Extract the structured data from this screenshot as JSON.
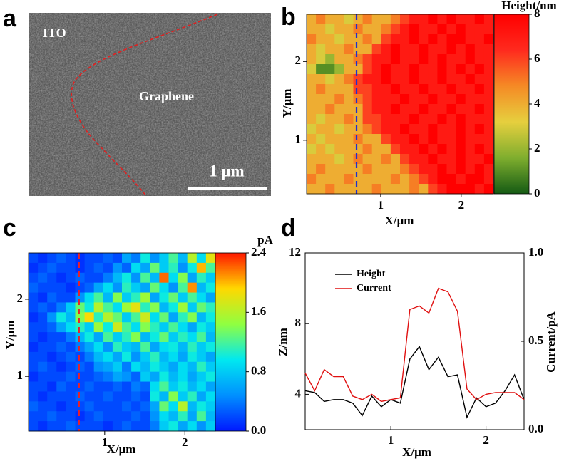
{
  "image_panel": {
    "letter": "a",
    "labels": [
      "ITO",
      "Graphene"
    ],
    "scale_bar": "1 μm"
  },
  "chart_data": [
    {
      "type": "heatmap",
      "panel": "b",
      "xlabel": "X/μm",
      "ylabel": "Y/μm",
      "xlim": [
        0.08,
        2.4
      ],
      "ylim": [
        0.32,
        2.6
      ],
      "xticks": [
        1,
        2
      ],
      "yticks": [
        1,
        2
      ],
      "marker_x": 0.7,
      "marker_color": "#1f2fd0",
      "colorbar": {
        "label": "Height/nm",
        "lim": [
          0,
          8
        ],
        "ticks": [
          0,
          2,
          4,
          6,
          8
        ],
        "colormap": [
          "#145a14",
          "#7fae2e",
          "#e6cf3e",
          "#f58a25",
          "#ff2a1e",
          "#ff0000"
        ]
      },
      "z": [
        [
          4,
          5,
          4,
          4,
          3,
          4,
          5,
          4,
          4,
          5,
          6,
          7,
          7,
          8,
          7,
          8,
          7,
          7,
          8,
          7
        ],
        [
          4,
          4,
          3,
          4,
          4,
          5,
          4,
          4,
          5,
          6,
          7,
          8,
          7,
          7,
          8,
          7,
          8,
          7,
          7,
          7
        ],
        [
          5,
          4,
          4,
          3,
          4,
          4,
          5,
          4,
          6,
          7,
          7,
          8,
          7,
          8,
          7,
          8,
          8,
          7,
          7,
          8
        ],
        [
          4,
          3,
          4,
          4,
          5,
          4,
          4,
          6,
          7,
          8,
          7,
          7,
          8,
          7,
          7,
          8,
          7,
          8,
          7,
          7
        ],
        [
          4,
          3,
          2,
          4,
          4,
          5,
          6,
          7,
          7,
          8,
          7,
          7,
          8,
          7,
          8,
          7,
          7,
          8,
          7,
          7
        ],
        [
          3,
          1,
          1,
          2,
          4,
          4,
          6,
          7,
          8,
          7,
          7,
          8,
          7,
          7,
          8,
          7,
          8,
          7,
          8,
          7
        ],
        [
          4,
          4,
          3,
          4,
          5,
          6,
          7,
          7,
          8,
          7,
          7,
          8,
          7,
          7,
          8,
          7,
          7,
          8,
          7,
          7
        ],
        [
          4,
          5,
          4,
          4,
          4,
          6,
          6,
          7,
          7,
          8,
          7,
          7,
          8,
          7,
          7,
          8,
          7,
          7,
          8,
          7
        ],
        [
          4,
          4,
          4,
          5,
          4,
          5,
          6,
          7,
          7,
          7,
          8,
          7,
          7,
          8,
          7,
          7,
          8,
          7,
          7,
          7
        ],
        [
          4,
          4,
          5,
          4,
          4,
          4,
          6,
          7,
          7,
          8,
          7,
          7,
          8,
          7,
          7,
          8,
          7,
          7,
          8,
          7
        ],
        [
          4,
          3,
          4,
          4,
          5,
          4,
          6,
          6,
          7,
          7,
          7,
          8,
          7,
          7,
          8,
          7,
          8,
          7,
          7,
          7
        ],
        [
          3,
          4,
          4,
          3,
          4,
          4,
          5,
          6,
          7,
          7,
          8,
          7,
          7,
          8,
          7,
          7,
          8,
          7,
          8,
          7
        ],
        [
          4,
          3,
          4,
          4,
          4,
          5,
          4,
          4,
          6,
          7,
          7,
          8,
          7,
          8,
          7,
          7,
          8,
          7,
          7,
          7
        ],
        [
          3,
          4,
          3,
          4,
          4,
          4,
          5,
          4,
          4,
          6,
          7,
          7,
          8,
          7,
          8,
          7,
          8,
          7,
          8,
          7
        ],
        [
          4,
          4,
          4,
          3,
          4,
          5,
          4,
          4,
          5,
          4,
          6,
          7,
          7,
          8,
          7,
          7,
          8,
          7,
          7,
          8
        ],
        [
          4,
          5,
          4,
          4,
          4,
          4,
          5,
          4,
          4,
          4,
          5,
          6,
          7,
          7,
          8,
          7,
          8,
          7,
          8,
          7
        ],
        [
          5,
          4,
          4,
          4,
          5,
          4,
          4,
          4,
          4,
          5,
          4,
          5,
          6,
          7,
          8,
          8,
          7,
          8,
          8,
          7
        ],
        [
          4,
          4,
          5,
          4,
          4,
          4,
          4,
          5,
          4,
          4,
          4,
          5,
          4,
          6,
          7,
          8,
          8,
          8,
          7,
          8
        ]
      ]
    },
    {
      "type": "heatmap",
      "panel": "c",
      "xlabel": "X/μm",
      "ylabel": "Y/μm",
      "xlim": [
        0.05,
        2.38
      ],
      "ylim": [
        0.29,
        2.6
      ],
      "xticks": [
        1,
        2
      ],
      "yticks": [
        1,
        2
      ],
      "marker_x": 0.68,
      "marker_color": "#e8202a",
      "colorbar": {
        "label": "pA",
        "lim": [
          0,
          2.4
        ],
        "ticks": [
          {
            "value": 0,
            "label": "0.0"
          },
          0.8,
          1.6,
          2.4
        ],
        "colormap": [
          "#0018ff",
          "#0090ff",
          "#00e8f0",
          "#90ff40",
          "#ffd800",
          "#ff1800"
        ]
      },
      "z": [
        [
          0.2,
          0.1,
          0.2,
          0.3,
          0.2,
          0.1,
          0.2,
          0.2,
          0.3,
          0.2,
          0.6,
          0.4,
          1.0,
          0.5,
          0.8,
          1.2,
          0.7,
          1.6,
          0.9,
          1.8
        ],
        [
          0.1,
          0.2,
          0.3,
          0.2,
          0.2,
          0.1,
          0.2,
          0.3,
          0.2,
          0.5,
          0.3,
          0.9,
          0.6,
          1.3,
          0.8,
          1.1,
          0.5,
          1.0,
          2.0,
          1.2
        ],
        [
          0.2,
          0.3,
          0.2,
          0.1,
          0.2,
          0.3,
          0.2,
          0.2,
          0.4,
          0.7,
          1.0,
          0.5,
          1.2,
          0.7,
          2.2,
          0.9,
          1.4,
          0.6,
          1.1,
          0.8
        ],
        [
          0.3,
          0.2,
          0.2,
          0.2,
          0.1,
          0.2,
          0.3,
          0.6,
          0.9,
          0.5,
          1.1,
          0.8,
          0.6,
          1.3,
          0.9,
          0.5,
          1.2,
          2.1,
          0.7,
          1.0
        ],
        [
          0.2,
          0.1,
          0.3,
          0.2,
          0.2,
          0.5,
          0.9,
          1.2,
          0.7,
          1.4,
          0.8,
          1.1,
          1.5,
          0.6,
          1.0,
          1.3,
          0.8,
          1.2,
          0.9,
          0.6
        ],
        [
          0.2,
          0.3,
          0.2,
          0.4,
          0.8,
          1.3,
          1.0,
          1.6,
          1.2,
          0.9,
          1.5,
          1.8,
          1.1,
          1.4,
          0.7,
          1.0,
          1.5,
          0.8,
          1.3,
          1.1
        ],
        [
          0.1,
          0.2,
          0.5,
          1.0,
          0.7,
          1.4,
          1.9,
          1.1,
          1.6,
          1.3,
          0.8,
          1.2,
          1.7,
          0.9,
          1.3,
          0.6,
          1.1,
          1.4,
          0.7,
          1.0
        ],
        [
          0.2,
          0.2,
          0.3,
          0.6,
          0.9,
          1.1,
          0.8,
          1.5,
          1.0,
          1.7,
          1.2,
          0.9,
          1.4,
          1.1,
          0.8,
          1.2,
          0.9,
          0.6,
          1.0,
          0.8
        ],
        [
          0.2,
          0.1,
          0.2,
          0.2,
          0.4,
          0.7,
          1.0,
          0.6,
          1.2,
          0.8,
          1.1,
          1.4,
          0.7,
          1.0,
          1.3,
          0.8,
          1.1,
          0.9,
          1.2,
          0.7
        ],
        [
          0.1,
          0.2,
          0.2,
          0.3,
          0.2,
          0.4,
          0.6,
          0.9,
          0.5,
          1.1,
          0.8,
          0.7,
          1.2,
          0.6,
          0.9,
          1.0,
          0.7,
          1.1,
          0.8,
          1.0
        ],
        [
          0.2,
          0.2,
          0.1,
          0.2,
          0.3,
          0.2,
          0.4,
          0.7,
          0.9,
          0.6,
          1.0,
          0.5,
          0.8,
          1.1,
          0.7,
          0.9,
          0.6,
          1.0,
          0.8,
          0.6
        ],
        [
          0.2,
          0.3,
          0.2,
          0.1,
          0.2,
          0.3,
          0.2,
          0.5,
          0.6,
          0.8,
          0.4,
          0.9,
          0.7,
          1.0,
          0.8,
          0.6,
          0.9,
          0.7,
          1.1,
          0.8
        ],
        [
          0.1,
          0.2,
          0.2,
          0.2,
          0.3,
          0.2,
          0.2,
          0.3,
          0.4,
          0.6,
          0.5,
          0.3,
          0.8,
          0.6,
          1.0,
          0.7,
          0.9,
          0.6,
          0.8,
          1.0
        ],
        [
          0.2,
          0.2,
          0.1,
          0.3,
          0.2,
          0.2,
          0.3,
          0.2,
          0.2,
          0.3,
          0.2,
          0.4,
          0.3,
          0.9,
          1.2,
          0.8,
          1.0,
          0.7,
          0.9,
          0.6
        ],
        [
          0.2,
          0.1,
          0.2,
          0.2,
          0.2,
          0.3,
          0.2,
          0.2,
          0.3,
          0.2,
          0.2,
          0.3,
          0.2,
          1.0,
          0.7,
          1.4,
          0.8,
          1.1,
          0.6,
          0.9
        ],
        [
          0.3,
          0.2,
          0.2,
          0.1,
          0.2,
          0.2,
          0.3,
          0.2,
          0.2,
          0.2,
          0.3,
          0.2,
          0.3,
          0.6,
          1.3,
          0.9,
          1.6,
          0.7,
          1.0,
          0.8
        ],
        [
          0.2,
          0.2,
          0.3,
          0.2,
          0.2,
          0.1,
          0.2,
          0.3,
          0.2,
          0.2,
          0.2,
          0.3,
          0.2,
          0.5,
          0.9,
          0.7,
          1.1,
          0.6,
          1.2,
          0.7
        ],
        [
          0.2,
          0.1,
          0.2,
          0.2,
          0.3,
          0.2,
          0.2,
          0.2,
          0.1,
          0.2,
          0.3,
          0.2,
          0.2,
          0.4,
          0.8,
          1.0,
          0.6,
          0.9,
          0.5,
          0.8
        ]
      ]
    },
    {
      "type": "line",
      "panel": "d",
      "xlabel": "X/μm",
      "ylabel": "Z/nm",
      "y2label": "Current/pA",
      "x": [
        0.1,
        0.2,
        0.3,
        0.4,
        0.5,
        0.6,
        0.7,
        0.8,
        0.9,
        1.0,
        1.1,
        1.2,
        1.3,
        1.4,
        1.5,
        1.6,
        1.7,
        1.8,
        1.9,
        2.0,
        2.1,
        2.2,
        2.3,
        2.4
      ],
      "xlim": [
        0.1,
        2.4
      ],
      "xticks": [
        1,
        2
      ],
      "ylim": [
        2,
        12
      ],
      "yticks": [
        4,
        8,
        12
      ],
      "y2lim": [
        0,
        1
      ],
      "y2ticks": [
        {
          "value": 0,
          "label": "0.0"
        },
        0.5,
        {
          "value": 1,
          "label": "1.0"
        }
      ],
      "legend": "upper left",
      "series": [
        {
          "name": "Height",
          "color": "#000000",
          "values": [
            4.2,
            4.1,
            3.6,
            3.7,
            3.7,
            3.5,
            2.8,
            3.9,
            3.3,
            3.7,
            3.5,
            6.0,
            6.7,
            5.4,
            6.1,
            5.0,
            5.1,
            2.7,
            3.8,
            3.3,
            3.5,
            4.2,
            5.1,
            3.7
          ]
        },
        {
          "name": "Current",
          "color": "#e01010",
          "axis": "y2",
          "values": [
            0.32,
            0.22,
            0.34,
            0.3,
            0.3,
            0.19,
            0.17,
            0.2,
            0.16,
            0.17,
            0.18,
            0.68,
            0.7,
            0.66,
            0.8,
            0.78,
            0.67,
            0.23,
            0.17,
            0.2,
            0.21,
            0.21,
            0.21,
            0.17
          ]
        }
      ]
    }
  ]
}
